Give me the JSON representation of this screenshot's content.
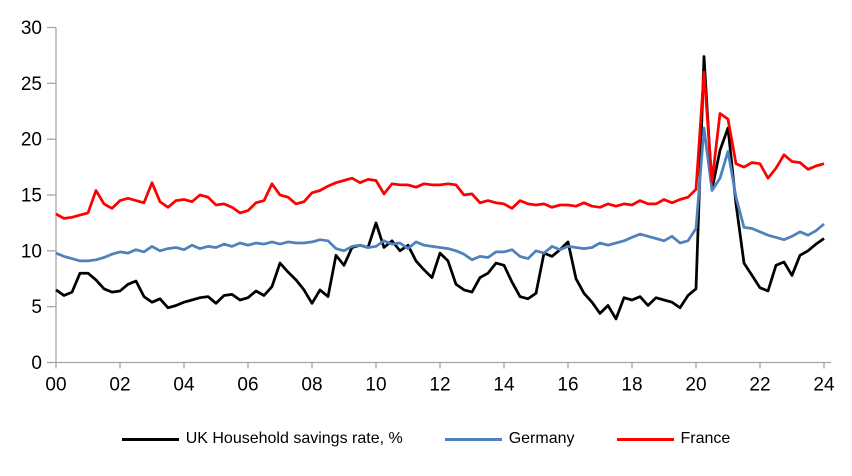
{
  "chart_data": {
    "type": "line",
    "x_start_year": 2000,
    "points_per_year": 4,
    "x_axis": {
      "tick_labels": [
        "00",
        "02",
        "04",
        "06",
        "08",
        "10",
        "12",
        "14",
        "16",
        "18",
        "20",
        "22",
        "24"
      ],
      "years_per_tick": 2
    },
    "y_axis": {
      "ticks": [
        0,
        5,
        10,
        15,
        20,
        25,
        30
      ],
      "range": [
        0,
        30
      ]
    },
    "grid": false,
    "legend_position": "bottom",
    "series": [
      {
        "name": "UK Household savings rate, %",
        "color": "#000000",
        "values": [
          6.5,
          6.0,
          6.3,
          8.0,
          8.0,
          7.4,
          6.6,
          6.3,
          6.4,
          7.0,
          7.3,
          5.9,
          5.4,
          5.7,
          4.9,
          5.1,
          5.4,
          5.6,
          5.8,
          5.9,
          5.3,
          6.0,
          6.1,
          5.6,
          5.8,
          6.4,
          6.0,
          6.8,
          8.9,
          8.1,
          7.4,
          6.5,
          5.3,
          6.5,
          5.9,
          9.6,
          8.7,
          10.3,
          10.5,
          10.3,
          12.5,
          10.3,
          10.9,
          10.0,
          10.5,
          9.1,
          8.3,
          7.6,
          9.8,
          9.1,
          7.0,
          6.5,
          6.3,
          7.6,
          8.0,
          8.9,
          8.7,
          7.2,
          5.9,
          5.7,
          6.2,
          9.8,
          9.5,
          10.1,
          10.8,
          7.5,
          6.2,
          5.4,
          4.4,
          5.1,
          3.9,
          5.8,
          5.6,
          5.9,
          5.1,
          5.8,
          5.6,
          5.4,
          4.9,
          6.0,
          6.6,
          27.4,
          15.5,
          19.0,
          21.0,
          14.2,
          8.9,
          7.8,
          6.7,
          6.4,
          8.7,
          9.0,
          7.8,
          9.6,
          10.0,
          10.6,
          11.1
        ]
      },
      {
        "name": "Germany",
        "color": "#4F81BD",
        "values": [
          9.8,
          9.5,
          9.3,
          9.1,
          9.1,
          9.2,
          9.4,
          9.7,
          9.9,
          9.8,
          10.1,
          9.9,
          10.4,
          10.0,
          10.2,
          10.3,
          10.1,
          10.5,
          10.2,
          10.4,
          10.3,
          10.6,
          10.4,
          10.7,
          10.5,
          10.7,
          10.6,
          10.8,
          10.6,
          10.8,
          10.7,
          10.7,
          10.8,
          11.0,
          10.9,
          10.2,
          10.0,
          10.4,
          10.5,
          10.3,
          10.4,
          10.9,
          10.6,
          10.7,
          10.2,
          10.8,
          10.5,
          10.4,
          10.3,
          10.2,
          10.0,
          9.7,
          9.2,
          9.5,
          9.4,
          9.9,
          9.9,
          10.1,
          9.5,
          9.3,
          10.0,
          9.8,
          10.4,
          10.1,
          10.4,
          10.3,
          10.2,
          10.3,
          10.7,
          10.5,
          10.7,
          10.9,
          11.2,
          11.5,
          11.3,
          11.1,
          10.9,
          11.3,
          10.7,
          10.9,
          12.0,
          21.0,
          15.4,
          16.5,
          18.9,
          14.8,
          12.1,
          12.0,
          11.7,
          11.4,
          11.2,
          11.0,
          11.3,
          11.7,
          11.4,
          11.8,
          12.4
        ]
      },
      {
        "name": "France",
        "color": "#FF0000",
        "values": [
          13.3,
          12.9,
          13.0,
          13.2,
          13.4,
          15.4,
          14.2,
          13.8,
          14.5,
          14.7,
          14.5,
          14.3,
          16.1,
          14.4,
          13.9,
          14.5,
          14.6,
          14.4,
          15.0,
          14.8,
          14.1,
          14.2,
          13.9,
          13.4,
          13.6,
          14.3,
          14.5,
          16.0,
          15.0,
          14.8,
          14.2,
          14.4,
          15.2,
          15.4,
          15.8,
          16.1,
          16.3,
          16.5,
          16.1,
          16.4,
          16.3,
          15.1,
          16.0,
          15.9,
          15.9,
          15.7,
          16.0,
          15.9,
          15.9,
          16.0,
          15.9,
          15.0,
          15.1,
          14.3,
          14.5,
          14.3,
          14.2,
          13.8,
          14.5,
          14.2,
          14.1,
          14.2,
          13.9,
          14.1,
          14.1,
          14.0,
          14.3,
          14.0,
          13.9,
          14.2,
          14.0,
          14.2,
          14.1,
          14.5,
          14.2,
          14.2,
          14.6,
          14.3,
          14.6,
          14.8,
          15.5,
          26.0,
          16.2,
          22.3,
          21.8,
          17.8,
          17.5,
          17.9,
          17.8,
          16.5,
          17.4,
          18.6,
          18.0,
          17.9,
          17.3,
          17.6,
          17.8
        ]
      }
    ]
  },
  "colors": {
    "axis": "#A6A6A6",
    "text": "#000000",
    "background": "#FFFFFF"
  }
}
